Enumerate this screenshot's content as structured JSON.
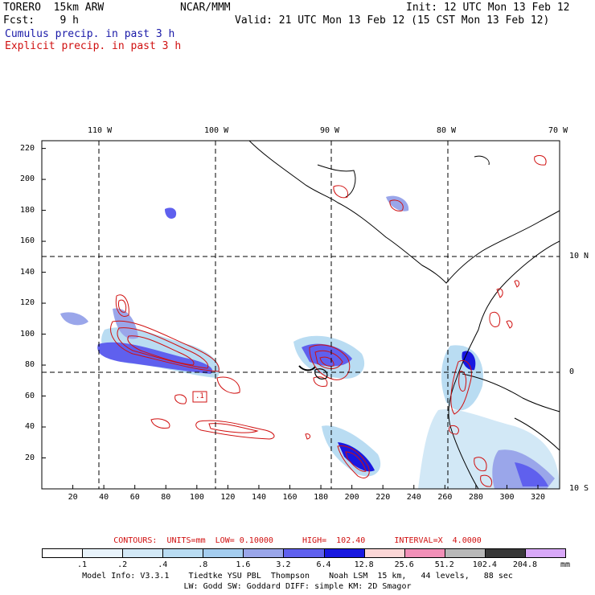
{
  "header": {
    "model": "TORERO  15km ARW",
    "org": "NCAR/MMM",
    "init": "Init: 12 UTC Mon 13 Feb 12",
    "fcst": "Fcst:    9 h",
    "valid": "Valid: 21 UTC Mon 13 Feb 12 (15 CST Mon 13 Feb 12)",
    "cumulus_label": "Cumulus precip. in past 3 h",
    "explicit_label": "Explicit precip. in past 3 h"
  },
  "map": {
    "top_lon_labels": [
      "110 W",
      "100 W",
      "90 W",
      "80 W",
      "70 W"
    ],
    "right_lat_labels": [
      "10 N",
      "0",
      "10 S"
    ],
    "y_ticks": [
      "20",
      "40",
      "60",
      "80",
      "100",
      "120",
      "140",
      "160",
      "180",
      "200",
      "220"
    ],
    "x_ticks": [
      "20",
      "40",
      "60",
      "80",
      "100",
      "120",
      "140",
      "160",
      "180",
      "200",
      "220",
      "240",
      "260",
      "280",
      "300",
      "320"
    ],
    "box_label": ".1"
  },
  "legend": {
    "contours_text": "CONTOURS:  UNITS=mm  LOW= 0.10000      HIGH=  102.40      INTERVAL=X  4.0000",
    "unit": "mm",
    "bins": [
      ".1",
      ".2",
      ".4",
      ".8",
      "1.6",
      "3.2",
      "6.4",
      "12.8",
      "25.6",
      "51.2",
      "102.4",
      "204.8"
    ],
    "colors": [
      "#ffffff",
      "#e8f3fb",
      "#d2e8f6",
      "#b9dcf2",
      "#a4cdef",
      "#9aa6ea",
      "#5f60ee",
      "#1818e0",
      "#fbd6d6",
      "#f290b8",
      "#b8b8b8",
      "#383838",
      "#d8a8f8"
    ]
  },
  "footer": {
    "line1": "Model Info: V3.3.1    Tiedtke YSU PBL  Thompson    Noah LSM  15 km,   44 levels,   88 sec",
    "line2": "LW: Godd SW: Goddard DIFF: simple KM: 2D Smagor"
  }
}
